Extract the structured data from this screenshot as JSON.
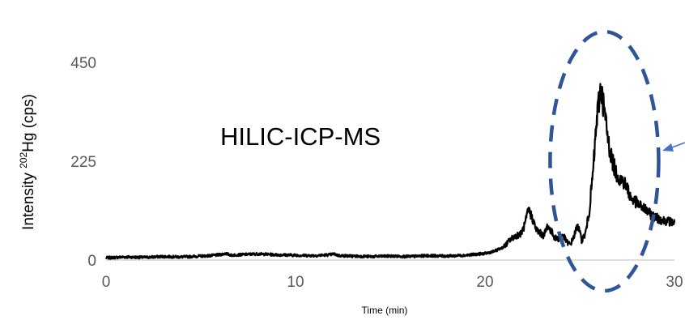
{
  "chart_data": {
    "type": "line",
    "title": "",
    "xlabel": "Time (min)",
    "ylabel": {
      "prefix": "Intensity ",
      "superscript": "202",
      "suffix": "Hg (cps)"
    },
    "xlim": [
      0,
      30
    ],
    "ylim": [
      0,
      450
    ],
    "xticks": [
      "0",
      "10",
      "20",
      "30"
    ],
    "yticks": [
      "0",
      "225",
      "450"
    ],
    "grid": false,
    "legend": "none",
    "annotations": [
      {
        "text": "HILIC-ICP-MS"
      }
    ],
    "highlight": {
      "shape": "dashed-ellipse",
      "center_x": 26.3,
      "center_y": 225,
      "color": "#2F5597"
    },
    "arrow": {
      "color": "#4472C4",
      "points_to": "highlighted-peak"
    },
    "series": [
      {
        "color": "#000000",
        "x": [
          0,
          1,
          2,
          3,
          4,
          5,
          5.5,
          6,
          6.3,
          6.6,
          7,
          8,
          9,
          10,
          11,
          11.8,
          12,
          12.3,
          13,
          14,
          15,
          16,
          17,
          18,
          19,
          20,
          20.5,
          21,
          21.3,
          21.6,
          21.9,
          22.1,
          22.3,
          22.5,
          22.7,
          22.9,
          23.1,
          23.3,
          23.5,
          23.7,
          23.9,
          24.1,
          24.3,
          24.5,
          24.7,
          24.9,
          25.1,
          25.3,
          25.5,
          25.7,
          25.9,
          26.1,
          26.3,
          26.5,
          26.7,
          26.9,
          27.1,
          27.3,
          27.5,
          27.7,
          27.9,
          28.1,
          28.3,
          28.5,
          28.7,
          28.9,
          29.1,
          29.3,
          29.5,
          29.7,
          30
        ],
        "y": [
          5,
          7,
          6,
          8,
          7,
          9,
          10,
          12,
          15,
          11,
          12,
          14,
          12,
          11,
          10,
          12,
          14,
          10,
          9,
          8,
          9,
          8,
          10,
          9,
          11,
          15,
          20,
          30,
          45,
          55,
          60,
          80,
          115,
          95,
          70,
          62,
          55,
          78,
          65,
          50,
          48,
          58,
          42,
          35,
          55,
          80,
          45,
          60,
          110,
          200,
          320,
          395,
          340,
          270,
          230,
          200,
          185,
          180,
          165,
          140,
          135,
          125,
          120,
          115,
          105,
          100,
          95,
          92,
          90,
          88,
          85
        ]
      }
    ]
  }
}
